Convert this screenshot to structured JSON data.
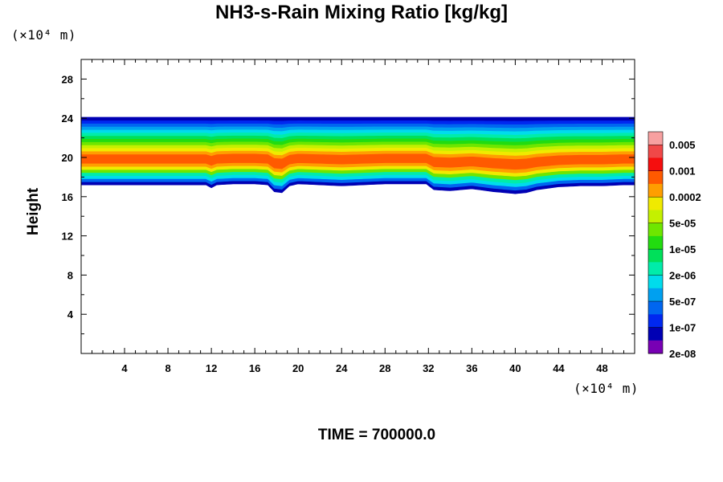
{
  "chart_data": {
    "type": "heatmap",
    "title": "NH3-s-Rain Mixing Ratio [kg/kg]",
    "xunit": "(×10⁴ m)",
    "yunit": "(×10⁴ m)",
    "ylabel": "Height",
    "time_label": "TIME = 700000.0",
    "xlim": [
      0,
      51
    ],
    "ylim": [
      0,
      30
    ],
    "xticks": [
      "4",
      "8",
      "12",
      "16",
      "20",
      "24",
      "28",
      "32",
      "36",
      "40",
      "44",
      "48"
    ],
    "yticks": [
      "4",
      "8",
      "12",
      "16",
      "20",
      "24",
      "28"
    ],
    "grid": false,
    "legend_position": "right",
    "colorbar": {
      "labels": [
        "0.005",
        "0.001",
        "0.0002",
        "5e-05",
        "1e-05",
        "2e-06",
        "5e-07",
        "1e-07",
        "2e-08"
      ],
      "colors": [
        "#f7a0a0",
        "#f04848",
        "#f50e0e",
        "#ff5a00",
        "#ff9e00",
        "#f0ea00",
        "#c4f000",
        "#6ee600",
        "#22dc10",
        "#00e05a",
        "#00ecaa",
        "#00dcec",
        "#00a0f0",
        "#0066f0",
        "#0028f0",
        "#0000b4",
        "#7800b4"
      ]
    },
    "band_colors_bottom_to_top": [
      "#0000b4",
      "#0066f0",
      "#00dcec",
      "#00ecaa",
      "#6ee600",
      "#f0ea00",
      "#ff9e00",
      "#ff5a00",
      "#ff5a00",
      "#ff5a00",
      "#ff9e00",
      "#f0ea00",
      "#c4f000",
      "#6ee600",
      "#22dc10",
      "#00e05a",
      "#00ecaa",
      "#00dcec",
      "#00a0f0",
      "#0066f0",
      "#0028f0",
      "#0000b4"
    ],
    "layer_top": 24.1,
    "layer_base": [
      [
        0,
        17.2
      ],
      [
        2,
        17.2
      ],
      [
        4,
        17.2
      ],
      [
        6,
        17.2
      ],
      [
        8,
        17.2
      ],
      [
        10,
        17.2
      ],
      [
        11.5,
        17.2
      ],
      [
        12,
        16.9
      ],
      [
        12.5,
        17.2
      ],
      [
        14,
        17.3
      ],
      [
        16,
        17.3
      ],
      [
        17.2,
        17.2
      ],
      [
        17.8,
        16.5
      ],
      [
        18.5,
        16.4
      ],
      [
        19.2,
        17.1
      ],
      [
        20,
        17.3
      ],
      [
        22,
        17.2
      ],
      [
        24,
        17.1
      ],
      [
        26,
        17.2
      ],
      [
        28,
        17.3
      ],
      [
        30,
        17.3
      ],
      [
        31.8,
        17.3
      ],
      [
        32.5,
        16.7
      ],
      [
        34,
        16.6
      ],
      [
        36,
        16.8
      ],
      [
        38,
        16.5
      ],
      [
        40,
        16.3
      ],
      [
        41,
        16.4
      ],
      [
        42,
        16.7
      ],
      [
        44,
        17.0
      ],
      [
        46,
        17.1
      ],
      [
        48,
        17.1
      ],
      [
        50,
        17.2
      ],
      [
        51,
        17.2
      ]
    ]
  }
}
